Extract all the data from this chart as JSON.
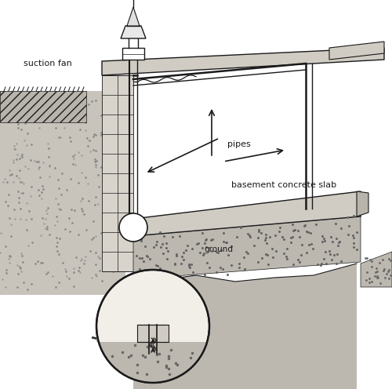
{
  "bg_color": "#ffffff",
  "lc": "#1a1a1a",
  "soil_color": "#c8c4bc",
  "soil_dark": "#b0aba3",
  "slab_color": "#d0ccc4",
  "gravel_color": "#bcb8b0",
  "wall_color": "#d8d4cc",
  "labels": {
    "suction_fan": "suction fan",
    "pipes": "pipes",
    "basement_slab": "basement concrete slab",
    "ground": "ground"
  }
}
